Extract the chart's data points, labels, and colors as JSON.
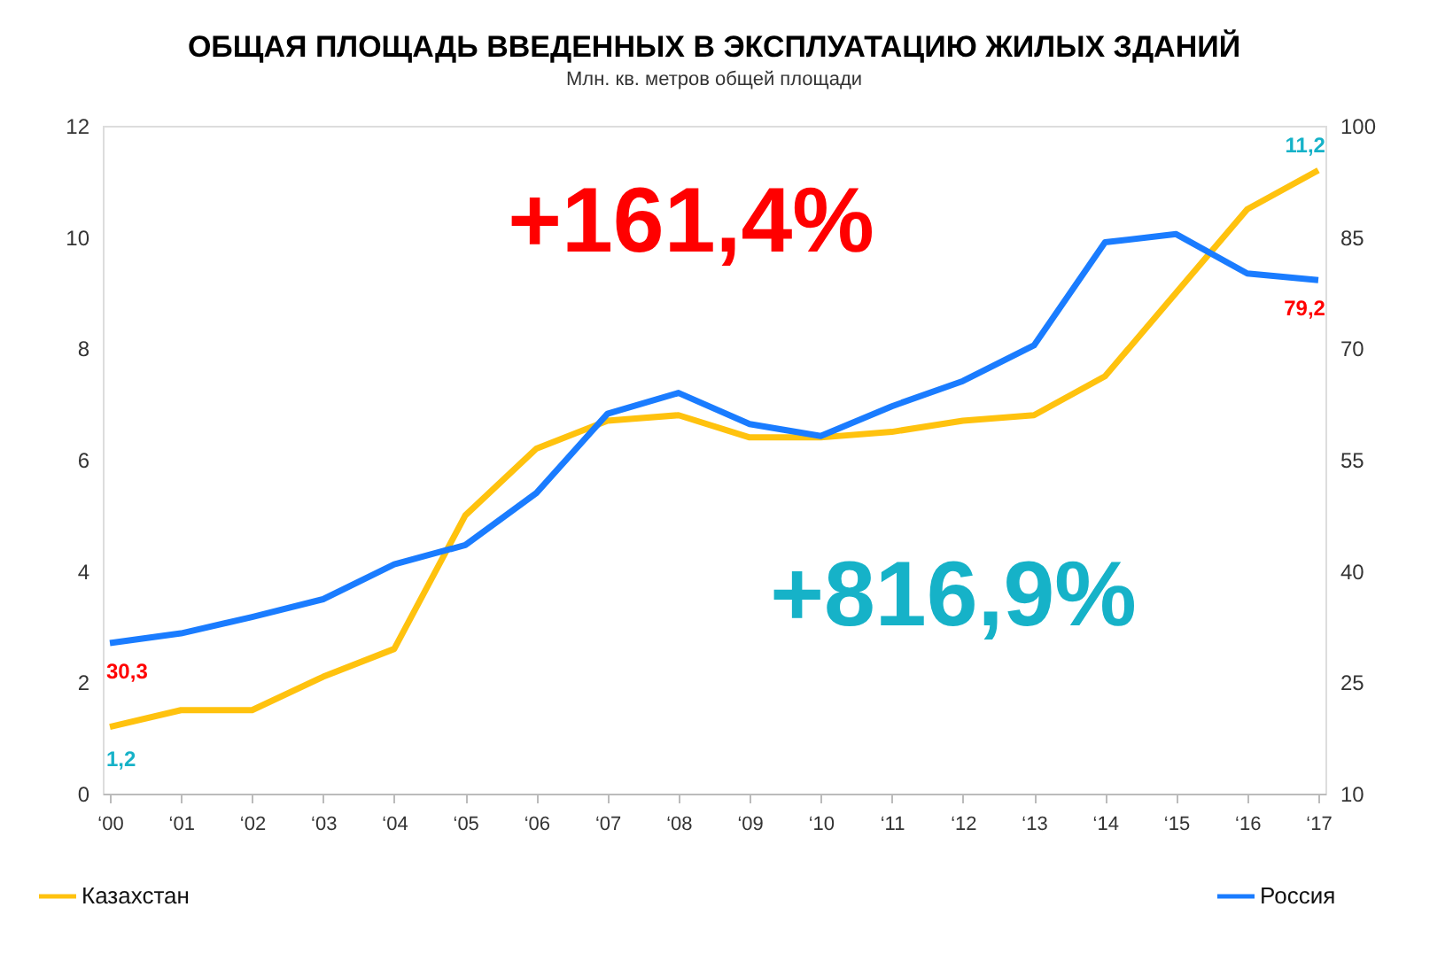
{
  "chart_data": {
    "type": "line",
    "title": "ОБЩАЯ ПЛОЩАДЬ ВВЕДЕННЫХ В ЭКСПЛУАТАЦИЮ ЖИЛЫХ ЗДАНИЙ",
    "subtitle": "Млн. кв. метров общей площади",
    "categories": [
      "‘00",
      "‘01",
      "‘02",
      "‘03",
      "‘04",
      "‘05",
      "‘06",
      "‘07",
      "‘08",
      "‘09",
      "‘10",
      "‘11",
      "‘12",
      "‘13",
      "‘14",
      "‘15",
      "‘16",
      "‘17"
    ],
    "series": [
      {
        "name": "Казахстан",
        "color": "#ffc20e",
        "values": [
          1.2,
          1.5,
          1.5,
          2.1,
          2.6,
          5.0,
          6.2,
          6.7,
          6.8,
          6.4,
          6.4,
          6.5,
          6.7,
          6.8,
          7.5,
          9.0,
          10.5,
          11.2
        ],
        "value_labels": [
          "1,2",
          null,
          null,
          null,
          null,
          null,
          null,
          null,
          null,
          null,
          null,
          null,
          null,
          null,
          null,
          null,
          null,
          "11,2"
        ]
      },
      {
        "name": "Россия",
        "color": "#1a7cff",
        "axis": "y2",
        "values": [
          30.3,
          31.6,
          33.8,
          36.2,
          40.9,
          43.5,
          50.5,
          61.2,
          64.0,
          59.8,
          58.2,
          62.2,
          65.6,
          70.4,
          84.3,
          85.4,
          80.1,
          79.2
        ],
        "value_labels": [
          "30,3",
          null,
          null,
          null,
          null,
          null,
          null,
          null,
          null,
          null,
          null,
          null,
          null,
          null,
          null,
          null,
          null,
          "79,2"
        ]
      }
    ],
    "ylim": [
      0,
      12
    ],
    "yticks": [
      0,
      2,
      4,
      6,
      8,
      10,
      12
    ],
    "y2lim": [
      10,
      100
    ],
    "y2ticks": [
      10,
      25,
      40,
      55,
      70,
      85,
      100
    ],
    "annotations": [
      "+161,4%",
      "+816,9%"
    ],
    "grid": false,
    "legend": "bottom",
    "marker": "none",
    "line_style": "solid"
  }
}
